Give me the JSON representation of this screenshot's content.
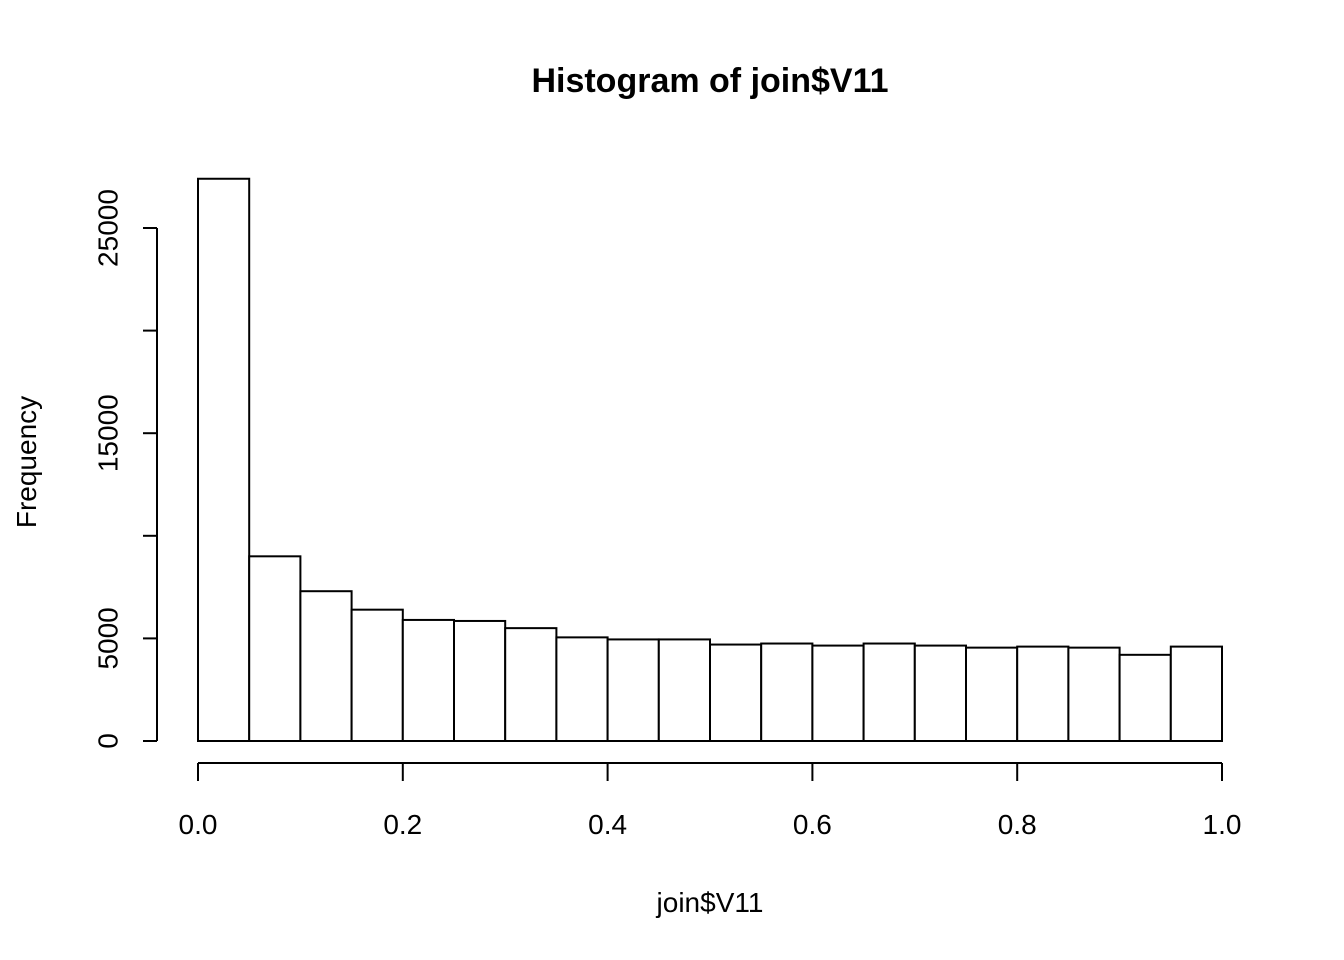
{
  "chart_data": {
    "type": "bar",
    "title": "Histogram of join$V11",
    "xlabel": "join$V11",
    "ylabel": "Frequency",
    "bin_width": 0.05,
    "bins": [
      0.0,
      0.05,
      0.1,
      0.15,
      0.2,
      0.25,
      0.3,
      0.35,
      0.4,
      0.45,
      0.5,
      0.55,
      0.6,
      0.65,
      0.7,
      0.75,
      0.8,
      0.85,
      0.9,
      0.95
    ],
    "values": [
      27400,
      9000,
      7300,
      6400,
      5900,
      5850,
      5500,
      5050,
      4950,
      4950,
      4700,
      4750,
      4650,
      4750,
      4650,
      4550,
      4600,
      4550,
      4200,
      4600
    ],
    "xlim": [
      0,
      1
    ],
    "ylim": [
      0,
      27400
    ],
    "x_ticks": [
      0.0,
      0.2,
      0.4,
      0.6,
      0.8,
      1.0
    ],
    "x_tick_labels": [
      "0.0",
      "0.2",
      "0.4",
      "0.6",
      "0.8",
      "1.0"
    ],
    "y_ticks": [
      0,
      5000,
      10000,
      15000,
      20000,
      25000
    ],
    "y_tick_labels": [
      "0",
      "5000",
      "",
      "15000",
      "",
      "25000"
    ],
    "grid": false,
    "bar_fill": "#ffffff",
    "bar_stroke": "#000000"
  }
}
